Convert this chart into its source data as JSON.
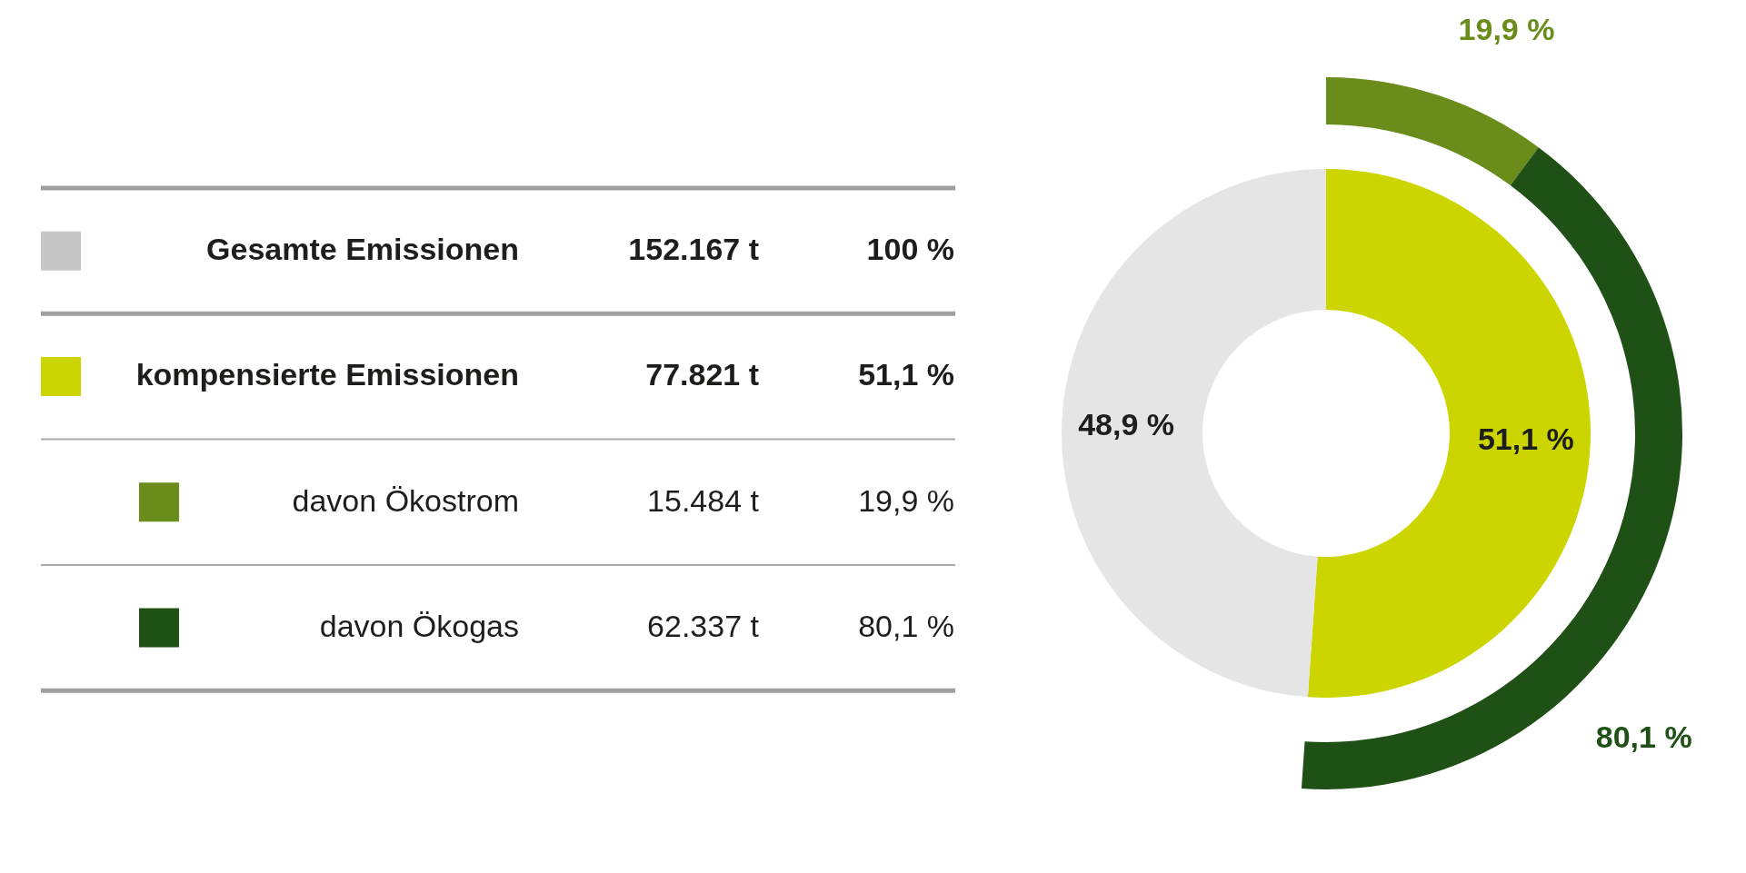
{
  "chart_data": [
    {
      "type": "other",
      "categories": [
        "Gesamte Emissionen",
        "kompensierte Emissionen",
        "davon Ökostrom",
        "davon Ökogas"
      ],
      "colors": [
        "#c6c6c6",
        "#cdd500",
        "#6a8c1b",
        "#1f5016"
      ],
      "series": [
        {
          "values": [
            152167,
            77821,
            15484,
            62337
          ],
          "value_labels": [
            "152.167 t",
            "77.821 t",
            "15.484 t",
            "62.337 t"
          ]
        },
        {
          "values": [
            100,
            51.1,
            19.9,
            80.1
          ],
          "value_labels": [
            "100 %",
            "51,1 %",
            "19,9 %",
            "80,1 %"
          ]
        }
      ]
    },
    {
      "type": "donut",
      "series": [
        {
          "values": [
            51.1,
            48.9
          ],
          "colors": [
            "#cdd500",
            "#e5e5e5"
          ],
          "value_labels": [
            "51,1 %",
            "48,9 %"
          ]
        },
        {
          "values": [
            19.9,
            80.1
          ],
          "colors": [
            "#6a8c1b",
            "#1f5016"
          ],
          "value_labels": [
            "19,9 %",
            "80,1 %"
          ]
        }
      ]
    }
  ]
}
